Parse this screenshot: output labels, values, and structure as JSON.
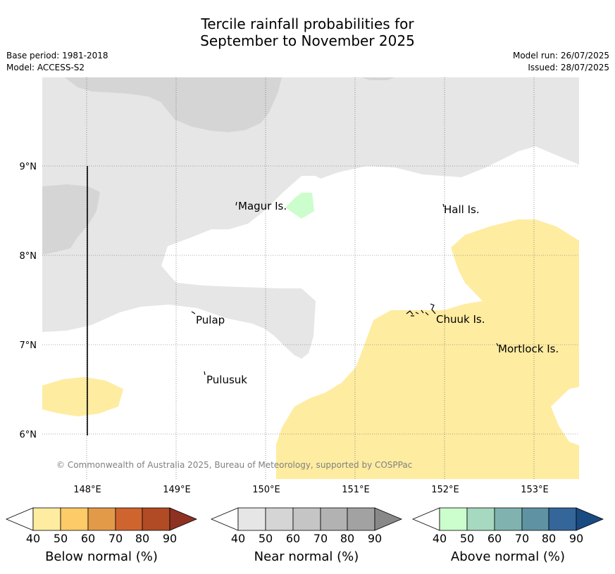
{
  "title": {
    "line1": "Tercile rainfall probabilities for",
    "line2": "September to November 2025"
  },
  "meta": {
    "base_period": "Base period: 1981-2018",
    "model": "Model: ACCESS-S2",
    "model_run": "Model run: 26/07/2025",
    "issued": "Issued: 28/07/2025"
  },
  "map": {
    "lat_labels": [
      "9°N",
      "8°N",
      "7°N",
      "6°N"
    ],
    "lon_labels": [
      "148°E",
      "149°E",
      "150°E",
      "151°E",
      "152°E",
      "153°E"
    ],
    "places": [
      {
        "name": "Magur Is."
      },
      {
        "name": "Hall Is."
      },
      {
        "name": "Pulap"
      },
      {
        "name": "Chuuk Is."
      },
      {
        "name": "Mortlock Is."
      },
      {
        "name": "Pulusuk"
      }
    ],
    "copyright": "© Commonwealth of Australia 2025, Bureau of Meteorology, supported by COSPPac",
    "colors": {
      "near_normal_40": "#e6e6e6",
      "near_normal_50": "#d5d5d5",
      "below_normal_40": "#feeca1",
      "above_normal_40": "#ccfdcc"
    }
  },
  "colorbars": [
    {
      "label": "Below normal (%)",
      "ticks": [
        "40",
        "50",
        "60",
        "70",
        "80",
        "90"
      ],
      "colors": [
        "#ffffff",
        "#feeca1",
        "#fdcb68",
        "#e29a49",
        "#cf642f",
        "#b04b25",
        "#8f3122"
      ]
    },
    {
      "label": "Near normal (%)",
      "ticks": [
        "40",
        "50",
        "60",
        "70",
        "80",
        "90"
      ],
      "colors": [
        "#ffffff",
        "#e6e6e6",
        "#d5d5d5",
        "#c5c5c5",
        "#b2b2b2",
        "#a2a2a2",
        "#888888"
      ]
    },
    {
      "label": "Above normal (%)",
      "ticks": [
        "40",
        "50",
        "60",
        "70",
        "80",
        "90"
      ],
      "colors": [
        "#ffffff",
        "#ccfdcc",
        "#a6d9bf",
        "#80b3b0",
        "#5f93a3",
        "#346699",
        "#1a4a82"
      ]
    }
  ]
}
